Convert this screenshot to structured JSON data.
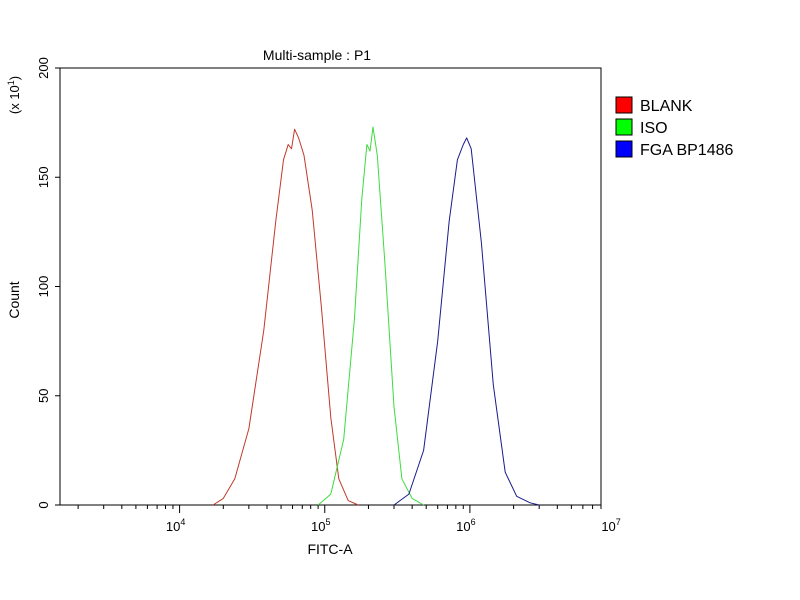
{
  "chart_data": {
    "type": "line",
    "title": "Multi-sample : P1",
    "xlabel": "FITC-A",
    "ylabel": "Count",
    "y_multiplier_label": {
      "prefix": "(x 10",
      "exp": "1",
      "suffix": ")"
    },
    "x_scale": "log",
    "xlim": [
      1500,
      8000000
    ],
    "ylim": [
      0,
      200
    ],
    "y_ticks": [
      {
        "value": 0,
        "label": "0"
      },
      {
        "value": 50,
        "label": "50"
      },
      {
        "value": 100,
        "label": "100"
      },
      {
        "value": 150,
        "label": "150"
      },
      {
        "value": 200,
        "label": "200"
      }
    ],
    "x_ticks": [
      {
        "value": 10000,
        "base": "10",
        "exp": "4"
      },
      {
        "value": 100000,
        "base": "10",
        "exp": "5"
      },
      {
        "value": 1000000,
        "base": "10",
        "exp": "6"
      },
      {
        "value": 10000000,
        "base": "10",
        "exp": "7"
      }
    ],
    "legend_position": "right",
    "series": [
      {
        "name": "BLANK",
        "color": "#c0392b",
        "legend_color": "#ff0000",
        "points": [
          [
            17000,
            0
          ],
          [
            20000,
            3
          ],
          [
            24000,
            12
          ],
          [
            30000,
            35
          ],
          [
            38000,
            80
          ],
          [
            46000,
            130
          ],
          [
            52000,
            158
          ],
          [
            56000,
            165
          ],
          [
            59000,
            163
          ],
          [
            62000,
            172
          ],
          [
            66000,
            168
          ],
          [
            72000,
            160
          ],
          [
            82000,
            135
          ],
          [
            95000,
            90
          ],
          [
            110000,
            40
          ],
          [
            125000,
            12
          ],
          [
            145000,
            2
          ],
          [
            170000,
            0
          ]
        ]
      },
      {
        "name": "ISO",
        "color": "#3ddc3d",
        "legend_color": "#00ff00",
        "points": [
          [
            90000,
            0
          ],
          [
            110000,
            5
          ],
          [
            135000,
            30
          ],
          [
            160000,
            85
          ],
          [
            180000,
            140
          ],
          [
            195000,
            165
          ],
          [
            205000,
            162
          ],
          [
            215000,
            173
          ],
          [
            230000,
            160
          ],
          [
            260000,
            110
          ],
          [
            300000,
            45
          ],
          [
            340000,
            12
          ],
          [
            400000,
            3
          ],
          [
            480000,
            0
          ]
        ]
      },
      {
        "name": "FGA BP1486",
        "color": "#1a1a8c",
        "legend_color": "#0000ff",
        "points": [
          [
            300000,
            0
          ],
          [
            380000,
            5
          ],
          [
            480000,
            25
          ],
          [
            600000,
            75
          ],
          [
            720000,
            130
          ],
          [
            820000,
            158
          ],
          [
            900000,
            165
          ],
          [
            950000,
            168
          ],
          [
            1020000,
            163
          ],
          [
            1200000,
            120
          ],
          [
            1450000,
            55
          ],
          [
            1750000,
            15
          ],
          [
            2100000,
            4
          ],
          [
            2600000,
            1
          ],
          [
            3000000,
            0
          ]
        ]
      }
    ]
  }
}
